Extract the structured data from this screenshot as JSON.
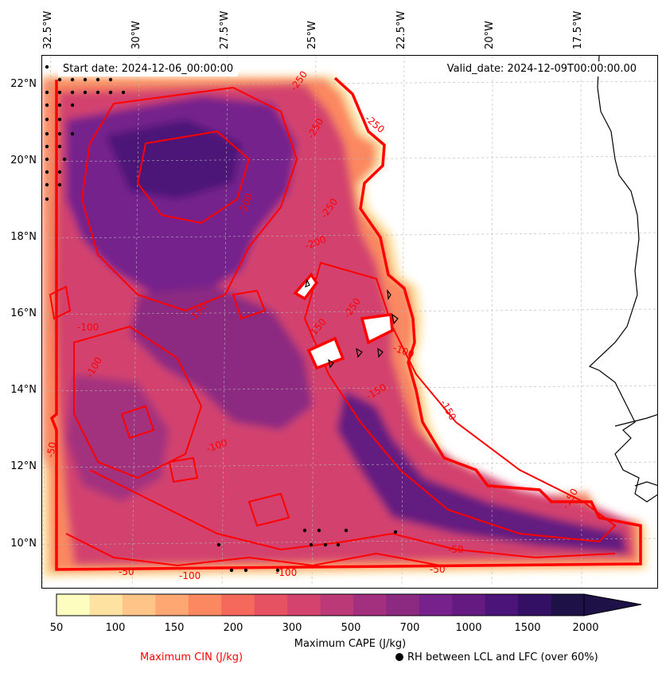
{
  "map": {
    "start_date": "Start date: 2024-12-06_00:00:00",
    "valid_date": "Valid_date: 2024-12-09T00:00:00.00",
    "lon_labels": [
      "32.5°W",
      "30°W",
      "27.5°W",
      "25°W",
      "22.5°W",
      "20°W",
      "17.5°W"
    ],
    "lat_labels": [
      "22°N",
      "20°N",
      "18°N",
      "16°N",
      "14°N",
      "12°N",
      "10°N"
    ],
    "cin_contour_labels": [
      "-250",
      "-250",
      "-250",
      "-250",
      "-250",
      "-200",
      "-200",
      "-150",
      "-150",
      "-150",
      "-150",
      "-150",
      "-100",
      "-100",
      "-100",
      "-100",
      "-100",
      "-100",
      "-50",
      "-50",
      "-50",
      "-50"
    ],
    "colors": {
      "cin_contour": "#ff0000",
      "coast": "#000000",
      "rh_marker": "#000000"
    }
  },
  "colorbar": {
    "label": "Maximum CAPE (J/kg)",
    "ticks": [
      "50",
      "100",
      "150",
      "200",
      "300",
      "500",
      "700",
      "1000",
      "1500",
      "2000"
    ],
    "colors": [
      "#fcfdbf",
      "#fde2a2",
      "#fec488",
      "#fea772",
      "#fb8861",
      "#f4695c",
      "#e75263",
      "#d3436e",
      "#bc3978",
      "#a3307e",
      "#8c2981",
      "#76218c",
      "#641a80",
      "#4b1478",
      "#341064",
      "#1d1147"
    ]
  },
  "legend": {
    "cin_label": "Maximum CIN (J/kg)",
    "rh_label": "RH between LCL and LFC (over 60%)"
  }
}
